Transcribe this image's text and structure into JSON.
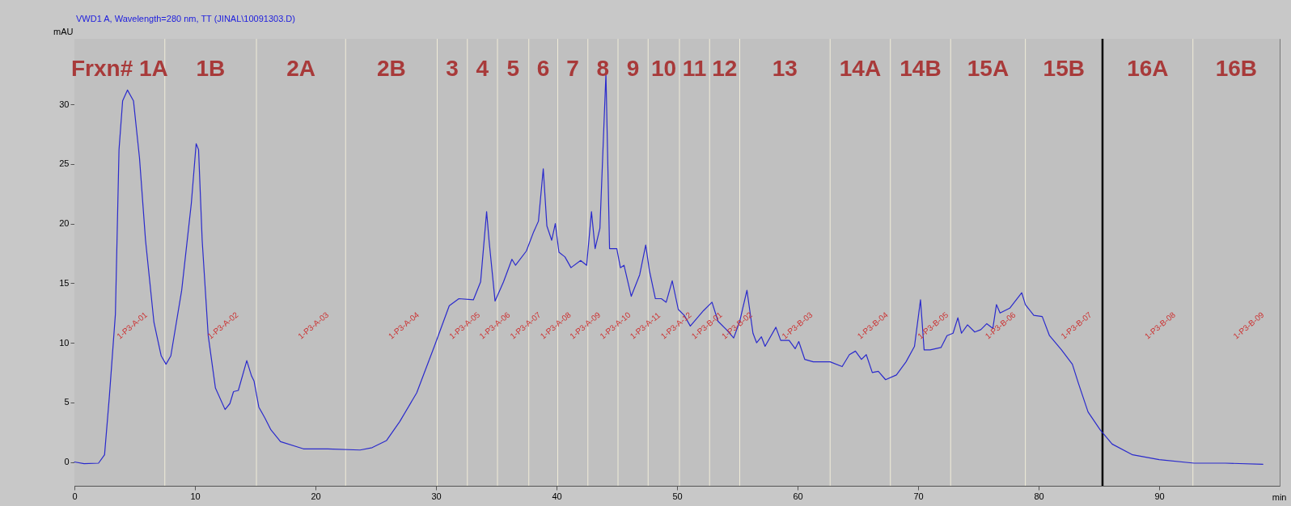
{
  "chart_data": {
    "type": "line",
    "title": "VWD1 A, Wavelength=280 nm, TT (JINAL\\10091303.D)",
    "xlabel": "min",
    "ylabel": "mAU",
    "xlim": [
      0,
      100
    ],
    "xticks": [
      0,
      10,
      20,
      30,
      40,
      50,
      60,
      70,
      80,
      90
    ],
    "ylim": [
      -2,
      35.5
    ],
    "yticks": [
      0,
      5,
      10,
      15,
      20,
      25,
      30
    ],
    "x": [
      0,
      0.8,
      2.0,
      2.5,
      2.9,
      3.4,
      3.7,
      4.0,
      4.4,
      4.9,
      5.4,
      5.9,
      6.6,
      7.2,
      7.6,
      8.0,
      8.9,
      9.7,
      10.1,
      10.3,
      10.6,
      11.1,
      11.7,
      12.5,
      12.9,
      13.2,
      13.6,
      14.3,
      14.7,
      14.9,
      15.3,
      15.8,
      16.3,
      17.1,
      19.0,
      21.0,
      23.7,
      24.7,
      25.9,
      27.0,
      28.4,
      29.9,
      31.1,
      31.9,
      33.1,
      33.7,
      34.2,
      34.4,
      34.9,
      35.6,
      36.3,
      36.6,
      37.5,
      38.1,
      38.5,
      38.9,
      39.2,
      39.6,
      39.9,
      40.2,
      40.7,
      41.2,
      42.0,
      42.5,
      42.9,
      43.2,
      43.6,
      44.1,
      44.4,
      45.0,
      45.3,
      45.6,
      46.2,
      46.9,
      47.4,
      47.7,
      48.2,
      48.7,
      49.1,
      49.6,
      50.1,
      50.6,
      51.1,
      51.6,
      52.2,
      52.9,
      53.4,
      54.1,
      54.7,
      55.2,
      55.8,
      56.3,
      56.6,
      57.0,
      57.3,
      58.2,
      58.6,
      59.3,
      59.8,
      60.1,
      60.6,
      61.3,
      62.7,
      63.7,
      64.3,
      64.8,
      65.3,
      65.7,
      66.2,
      66.7,
      67.3,
      68.2,
      69.0,
      69.7,
      70.2,
      70.5,
      71.0,
      71.9,
      72.4,
      72.9,
      73.3,
      73.6,
      74.1,
      74.7,
      75.2,
      75.7,
      76.2,
      76.5,
      76.8,
      77.6,
      78.6,
      78.9,
      79.6,
      80.3,
      80.9,
      81.9,
      82.8,
      83.3,
      84.1,
      85.1,
      86.1,
      87.8,
      90.0,
      92.9,
      95.5,
      98.6
    ],
    "series": [
      {
        "color": "#2a2acc",
        "values": [
          0,
          -0.14,
          -0.1,
          0.6,
          5.5,
          12.4,
          26.2,
          30.3,
          31.2,
          30.3,
          25.5,
          18.6,
          11.7,
          8.9,
          8.2,
          8.9,
          14.4,
          21.7,
          26.7,
          26.2,
          18.6,
          10.6,
          6.2,
          4.4,
          4.9,
          5.9,
          6.0,
          8.5,
          7.2,
          6.8,
          4.6,
          3.7,
          2.7,
          1.7,
          1.1,
          1.1,
          1.0,
          1.2,
          1.8,
          3.4,
          5.8,
          9.8,
          13.1,
          13.7,
          13.6,
          15.1,
          21.0,
          18.6,
          13.5,
          15.1,
          17.0,
          16.5,
          17.7,
          19.3,
          20.2,
          24.6,
          19.8,
          18.6,
          20.0,
          17.6,
          17.2,
          16.3,
          16.9,
          16.5,
          21.0,
          17.9,
          19.6,
          32.6,
          17.9,
          17.9,
          16.3,
          16.5,
          13.9,
          15.7,
          18.2,
          16.1,
          13.7,
          13.7,
          13.4,
          15.2,
          12.8,
          12.3,
          11.4,
          12.0,
          12.7,
          13.4,
          11.8,
          11.1,
          10.4,
          11.8,
          14.4,
          10.8,
          10.0,
          10.5,
          9.7,
          11.3,
          10.2,
          10.2,
          9.5,
          10.1,
          8.6,
          8.4,
          8.4,
          8.0,
          9.0,
          9.3,
          8.6,
          9.0,
          7.5,
          7.6,
          6.9,
          7.3,
          8.4,
          9.7,
          13.6,
          9.4,
          9.4,
          9.6,
          10.6,
          10.8,
          12.1,
          10.8,
          11.5,
          10.9,
          11.1,
          11.6,
          11.2,
          13.2,
          12.5,
          12.9,
          14.2,
          13.2,
          12.3,
          12.2,
          10.6,
          9.4,
          8.2,
          6.6,
          4.2,
          2.7,
          1.5,
          0.6,
          0.2,
          -0.1,
          -0.1,
          -0.2
        ]
      }
    ],
    "ref_lines": [
      {
        "axis": "x",
        "value": 7.5,
        "color": "#f0ecd8"
      },
      {
        "axis": "x",
        "value": 15.1,
        "color": "#f0ecd8"
      },
      {
        "axis": "x",
        "value": 22.5,
        "color": "#f0ecd8"
      },
      {
        "axis": "x",
        "value": 30.1,
        "color": "#f0ecd8"
      },
      {
        "axis": "x",
        "value": 32.6,
        "color": "#f0ecd8"
      },
      {
        "axis": "x",
        "value": 35.1,
        "color": "#f0ecd8"
      },
      {
        "axis": "x",
        "value": 37.7,
        "color": "#f0ecd8"
      },
      {
        "axis": "x",
        "value": 40.1,
        "color": "#f0ecd8"
      },
      {
        "axis": "x",
        "value": 42.6,
        "color": "#f0ecd8"
      },
      {
        "axis": "x",
        "value": 45.1,
        "color": "#f0ecd8"
      },
      {
        "axis": "x",
        "value": 47.6,
        "color": "#f0ecd8"
      },
      {
        "axis": "x",
        "value": 50.2,
        "color": "#f0ecd8"
      },
      {
        "axis": "x",
        "value": 52.7,
        "color": "#f0ecd8"
      },
      {
        "axis": "x",
        "value": 55.2,
        "color": "#f0ecd8"
      },
      {
        "axis": "x",
        "value": 62.7,
        "color": "#f0ecd8"
      },
      {
        "axis": "x",
        "value": 67.7,
        "color": "#f0ecd8"
      },
      {
        "axis": "x",
        "value": 72.7,
        "color": "#f0ecd8"
      },
      {
        "axis": "x",
        "value": 78.9,
        "color": "#f0ecd8"
      },
      {
        "axis": "x",
        "value": 85.3,
        "color": "#000000"
      },
      {
        "axis": "x",
        "value": 92.8,
        "color": "#f0ecd8"
      }
    ],
    "bands": [
      {
        "axis": "x",
        "from": 0,
        "to": 7.5,
        "label": "Frxn# 1A",
        "color": "#c0c0c0"
      },
      {
        "axis": "x",
        "from": 7.5,
        "to": 15.1,
        "label": "1B",
        "color": "#c0c0c0"
      },
      {
        "axis": "x",
        "from": 15.1,
        "to": 22.5,
        "label": "2A",
        "color": "#c0c0c0"
      },
      {
        "axis": "x",
        "from": 22.5,
        "to": 30.1,
        "label": "2B",
        "color": "#c0c0c0"
      },
      {
        "axis": "x",
        "from": 30.1,
        "to": 32.6,
        "label": "3",
        "color": "#c0c0c0"
      },
      {
        "axis": "x",
        "from": 32.6,
        "to": 35.1,
        "label": "4",
        "color": "#c0c0c0"
      },
      {
        "axis": "x",
        "from": 35.1,
        "to": 37.7,
        "label": "5",
        "color": "#c0c0c0"
      },
      {
        "axis": "x",
        "from": 37.7,
        "to": 40.1,
        "label": "6",
        "color": "#c0c0c0"
      },
      {
        "axis": "x",
        "from": 40.1,
        "to": 42.6,
        "label": "7",
        "color": "#c0c0c0"
      },
      {
        "axis": "x",
        "from": 42.6,
        "to": 45.1,
        "label": "8",
        "color": "#c0c0c0"
      },
      {
        "axis": "x",
        "from": 45.1,
        "to": 47.6,
        "label": "9",
        "color": "#c0c0c0"
      },
      {
        "axis": "x",
        "from": 47.6,
        "to": 50.2,
        "label": "10",
        "color": "#c0c0c0"
      },
      {
        "axis": "x",
        "from": 50.2,
        "to": 52.7,
        "label": "11",
        "color": "#c0c0c0"
      },
      {
        "axis": "x",
        "from": 52.7,
        "to": 55.2,
        "label": "12",
        "color": "#c0c0c0"
      },
      {
        "axis": "x",
        "from": 55.2,
        "to": 62.7,
        "label": "13",
        "color": "#c0c0c0"
      },
      {
        "axis": "x",
        "from": 62.7,
        "to": 67.7,
        "label": "14A",
        "color": "#c0c0c0"
      },
      {
        "axis": "x",
        "from": 67.7,
        "to": 72.7,
        "label": "14B",
        "color": "#c0c0c0"
      },
      {
        "axis": "x",
        "from": 72.7,
        "to": 78.9,
        "label": "15A",
        "color": "#c0c0c0"
      },
      {
        "axis": "x",
        "from": 78.9,
        "to": 85.3,
        "label": "15B",
        "color": "#c0c0c0"
      },
      {
        "axis": "x",
        "from": 85.3,
        "to": 92.8,
        "label": "16A",
        "color": "#c0c0c0"
      },
      {
        "axis": "x",
        "from": 92.8,
        "to": 100,
        "label": "16B",
        "color": "#c0c0c0"
      }
    ],
    "annotations": [
      "1-P3-A-01",
      "1-P3-A-02",
      "1-P3-A-03",
      "1-P3-A-04",
      "1-P3-A-05",
      "1-P3-A-06",
      "1-P3-A-07",
      "1-P3-A-08",
      "1-P3-A-09",
      "1-P3-A-10",
      "1-P3-A-11",
      "1-P3-A-12",
      "1-P3-B-01",
      "1-P3-B-02",
      "1-P3-B-03",
      "1-P3-B-04",
      "1-P3-B-05",
      "1-P3-B-06",
      "1-P3-B-07",
      "1-P3-B-08",
      "1-P3-B-09"
    ]
  }
}
